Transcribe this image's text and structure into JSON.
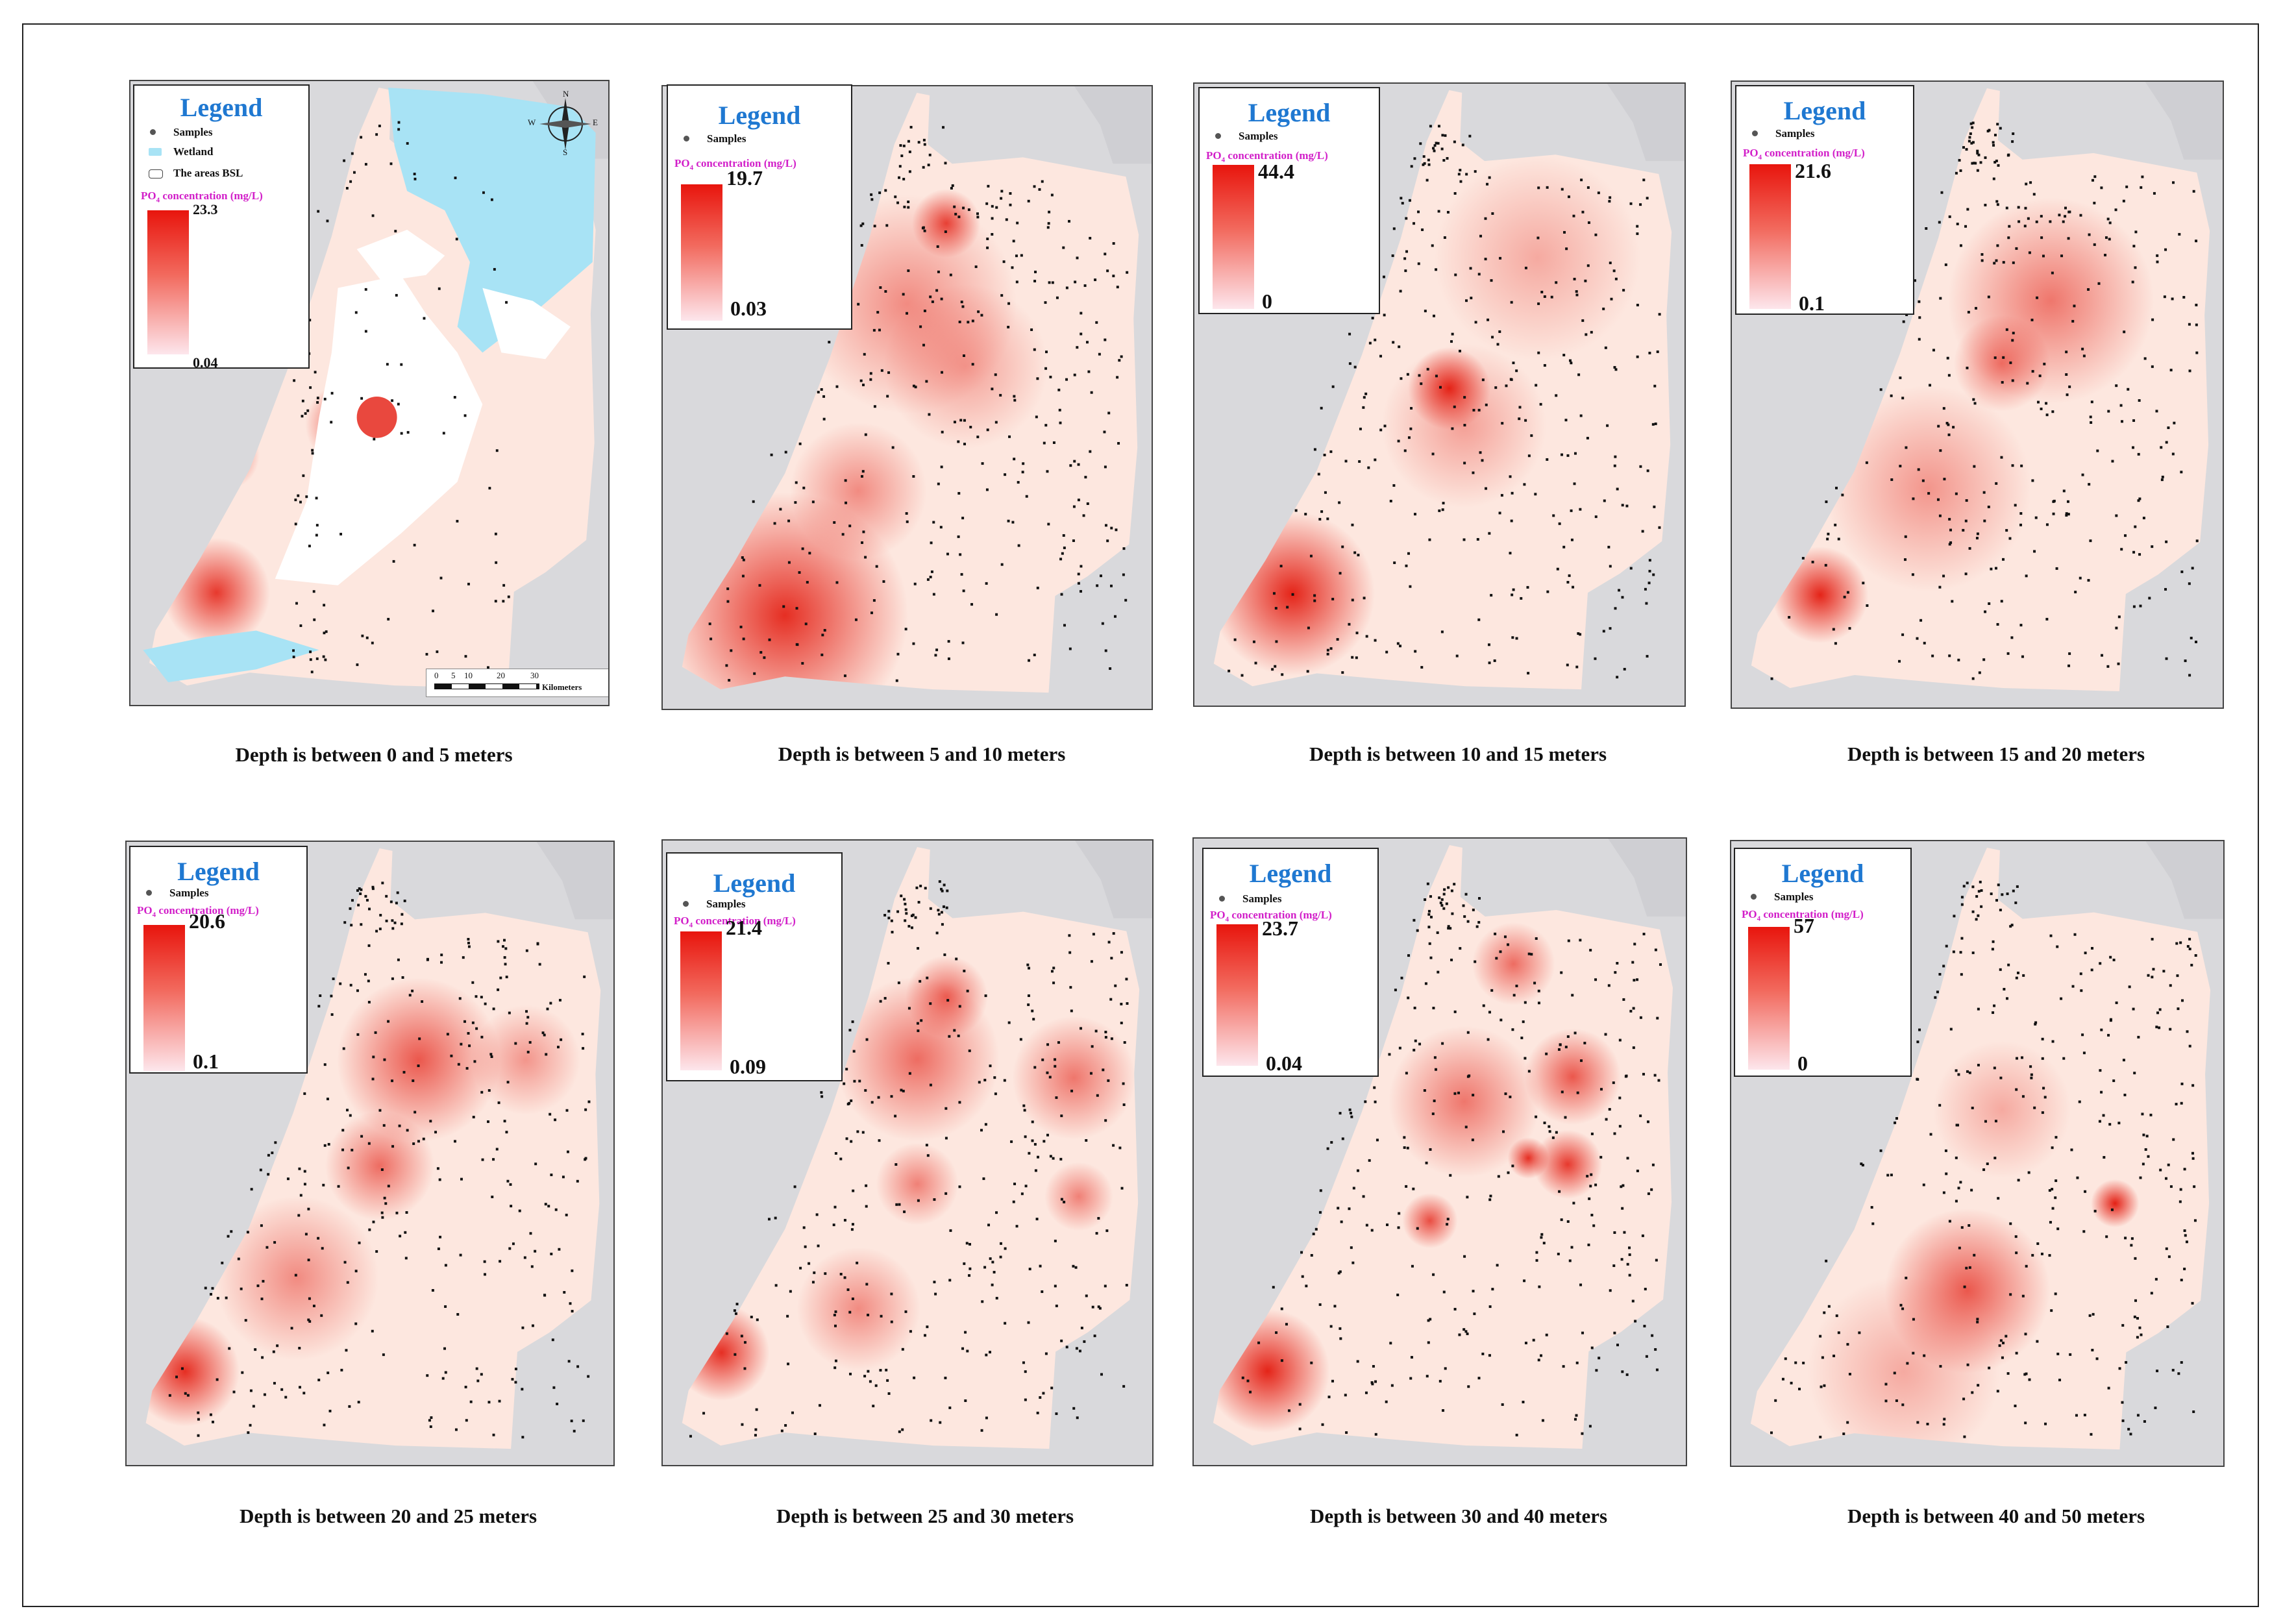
{
  "colors": {
    "land": "#fde7df",
    "sea": "#d9d9dc",
    "hot": "#e31a0e",
    "wetland": "#a8e3f5",
    "bsl": "#ffffff",
    "sample": "#111111"
  },
  "legend_title": "Legend",
  "samples_label": "Samples",
  "wetland_label": "Wetland",
  "bsl_label": "The areas BSL",
  "conc_label_prefix": "PO",
  "conc_label_sub": "4",
  "conc_label_suffix": " concentration (mg/L)",
  "compass": {
    "n": "N",
    "s": "S",
    "e": "E",
    "w": "W"
  },
  "scalebar": {
    "ticks": [
      "0",
      "5",
      "10",
      "20",
      "30"
    ],
    "unit": "Kilometers"
  },
  "panels": [
    {
      "caption": "Depth is between 0 and 5 meters",
      "max": "23.3",
      "min": "0.04"
    },
    {
      "caption": "Depth is between 5 and 10 meters",
      "max": "19.7",
      "min": "0.03"
    },
    {
      "caption": "Depth is between 10 and 15 meters",
      "max": "44.4",
      "min": "0"
    },
    {
      "caption": "Depth is between 15 and 20 meters",
      "max": "21.6",
      "min": "0.1"
    },
    {
      "caption": "Depth is between 20 and 25 meters",
      "max": "20.6",
      "min": "0.1"
    },
    {
      "caption": "Depth is between 25 and 30 meters",
      "max": "21.4",
      "min": "0.09"
    },
    {
      "caption": "Depth is between 30 and 40 meters",
      "max": "23.7",
      "min": "0.04"
    },
    {
      "caption": "Depth is between 40 and 50 meters",
      "max": "57",
      "min": "0"
    }
  ],
  "hotspots": [
    [
      [
        0.45,
        0.55,
        0.06,
        0.75
      ],
      [
        0.2,
        0.6,
        0.05,
        0.7
      ],
      [
        0.18,
        0.82,
        0.08,
        0.85
      ],
      [
        0.54,
        0.53,
        0.04,
        0.5
      ]
    ],
    [
      [
        0.25,
        0.85,
        0.18,
        0.9
      ],
      [
        0.5,
        0.35,
        0.16,
        0.45
      ],
      [
        0.62,
        0.45,
        0.12,
        0.35
      ],
      [
        0.4,
        0.65,
        0.1,
        0.45
      ],
      [
        0.58,
        0.22,
        0.05,
        0.8
      ]
    ],
    [
      [
        0.2,
        0.82,
        0.12,
        0.95
      ],
      [
        0.52,
        0.49,
        0.06,
        0.95
      ],
      [
        0.7,
        0.28,
        0.15,
        0.3
      ],
      [
        0.55,
        0.55,
        0.12,
        0.35
      ]
    ],
    [
      [
        0.18,
        0.82,
        0.07,
        0.95
      ],
      [
        0.65,
        0.35,
        0.15,
        0.55
      ],
      [
        0.55,
        0.45,
        0.07,
        0.55
      ],
      [
        0.4,
        0.65,
        0.15,
        0.4
      ]
    ],
    [
      [
        0.12,
        0.85,
        0.08,
        0.9
      ],
      [
        0.6,
        0.35,
        0.12,
        0.7
      ],
      [
        0.52,
        0.52,
        0.08,
        0.6
      ],
      [
        0.35,
        0.7,
        0.12,
        0.45
      ],
      [
        0.82,
        0.35,
        0.08,
        0.4
      ]
    ],
    [
      [
        0.12,
        0.82,
        0.07,
        0.9
      ],
      [
        0.52,
        0.35,
        0.12,
        0.6
      ],
      [
        0.84,
        0.38,
        0.09,
        0.55
      ],
      [
        0.58,
        0.25,
        0.06,
        0.65
      ],
      [
        0.52,
        0.55,
        0.06,
        0.5
      ],
      [
        0.4,
        0.75,
        0.09,
        0.45
      ],
      [
        0.85,
        0.57,
        0.05,
        0.5
      ]
    ],
    [
      [
        0.15,
        0.85,
        0.09,
        0.95
      ],
      [
        0.55,
        0.42,
        0.11,
        0.55
      ],
      [
        0.77,
        0.38,
        0.07,
        0.7
      ],
      [
        0.76,
        0.52,
        0.05,
        0.85
      ],
      [
        0.68,
        0.51,
        0.03,
        0.9
      ],
      [
        0.48,
        0.61,
        0.04,
        0.75
      ],
      [
        0.65,
        0.2,
        0.06,
        0.6
      ]
    ],
    [
      [
        0.78,
        0.58,
        0.035,
        0.97
      ],
      [
        0.48,
        0.72,
        0.12,
        0.7
      ],
      [
        0.55,
        0.43,
        0.1,
        0.3
      ],
      [
        0.35,
        0.85,
        0.14,
        0.3
      ]
    ]
  ]
}
